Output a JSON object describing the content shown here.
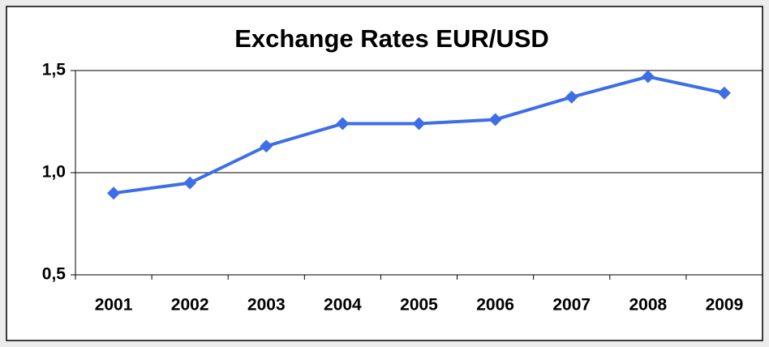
{
  "chart_data": {
    "type": "line",
    "title": "Exchange Rates EUR/USD",
    "categories": [
      "2001",
      "2002",
      "2003",
      "2004",
      "2005",
      "2006",
      "2007",
      "2008",
      "2009"
    ],
    "series": [
      {
        "name": "EUR/USD",
        "color": "#3d6ee8",
        "values": [
          0.9,
          0.95,
          1.13,
          1.24,
          1.24,
          1.26,
          1.37,
          1.47,
          1.39
        ]
      }
    ],
    "ylim": [
      0.5,
      1.5
    ],
    "yticks": [
      {
        "value": 0.5,
        "label": "0,5"
      },
      {
        "value": 1.0,
        "label": "1,0"
      },
      {
        "value": 1.5,
        "label": "1,5"
      }
    ],
    "grid": true
  }
}
